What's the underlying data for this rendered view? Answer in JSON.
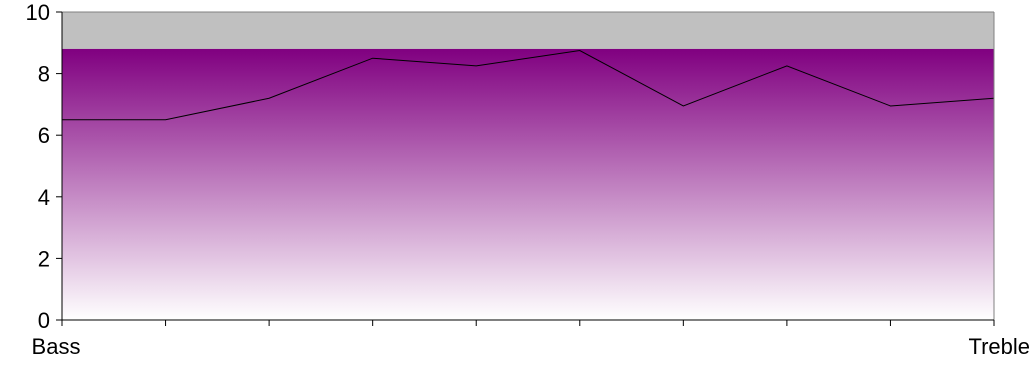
{
  "chart_data": {
    "type": "area",
    "categories": [
      "Bass",
      "",
      "",
      "",
      "",
      "",
      "",
      "",
      "",
      "Treble"
    ],
    "series": [
      {
        "values": [
          6.5,
          6.5,
          7.2,
          8.5,
          8.25,
          8.75,
          6.95,
          8.25,
          6.95,
          7.2
        ]
      }
    ],
    "band_top": 8.8,
    "ylim": [
      0,
      10
    ],
    "yticks": [
      0,
      2,
      4,
      6,
      8,
      10
    ],
    "x_tick_labels": [
      "Bass",
      "Treble"
    ],
    "grid": false,
    "legend": "none",
    "colors": {
      "background_band": "#c0c0c0",
      "fill_top": "#800080",
      "fill_bottom": "#ffffff",
      "line": "#000000",
      "axis": "#000000"
    }
  }
}
